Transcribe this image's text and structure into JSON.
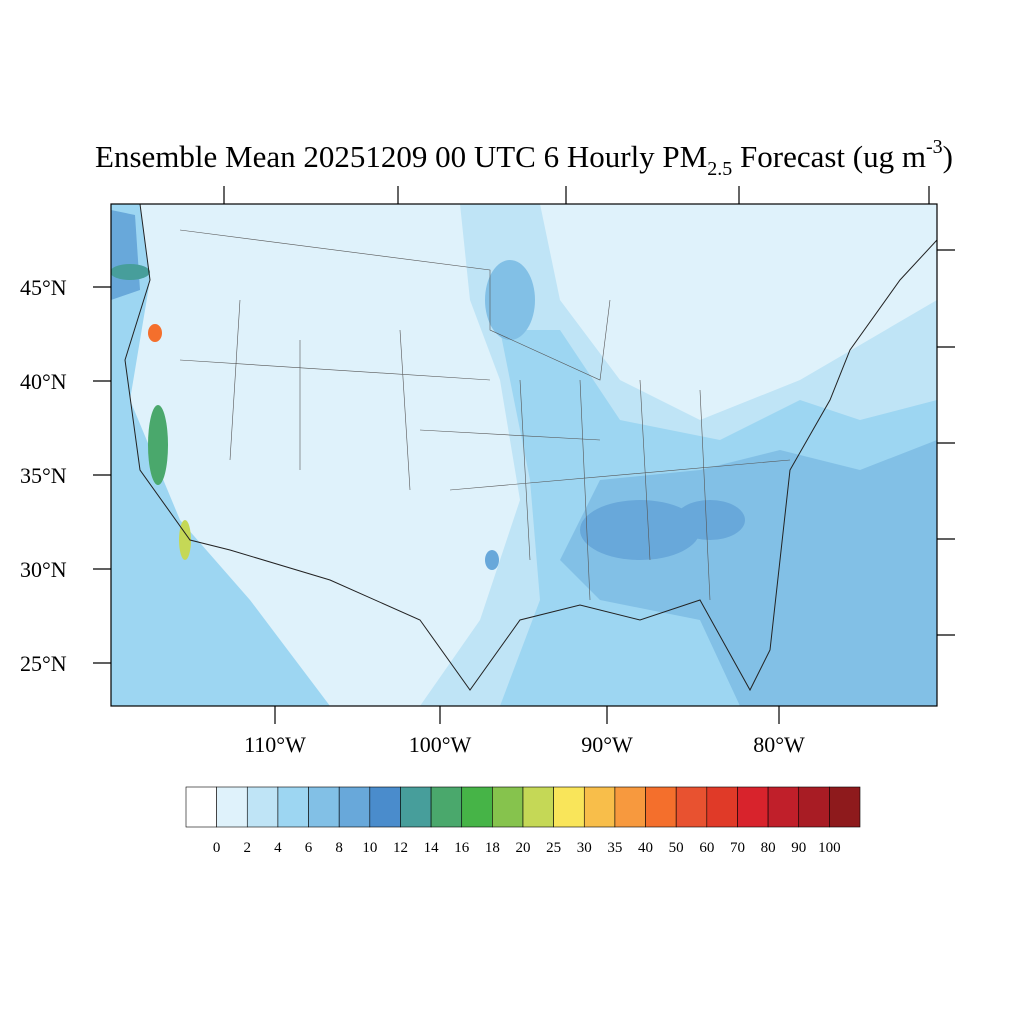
{
  "title": {
    "text": "Ensemble Mean 20251209 00 UTC 6 Hourly PM",
    "subscript": "2.5",
    "text2": " Forecast (ug m",
    "superscript": "-3",
    "text3": ")"
  },
  "map": {
    "lat_labels": [
      "45°N",
      "40°N",
      "35°N",
      "30°N",
      "25°N"
    ],
    "lon_labels": [
      "110°W",
      "100°W",
      "90°W",
      "80°W"
    ]
  },
  "colorbar": {
    "colors": [
      "#ffffff",
      "#dff2fb",
      "#bfe4f6",
      "#9dd6f2",
      "#82c0e6",
      "#68a8da",
      "#4a8ccc",
      "#479e9b",
      "#4aa86c",
      "#46b447",
      "#86c34d",
      "#c5d856",
      "#f9e55a",
      "#f8be4a",
      "#f7993e",
      "#f46f2c",
      "#e85230",
      "#e03a28",
      "#d8232c",
      "#c01f2a",
      "#a81c24",
      "#8e1a1c"
    ],
    "labels": [
      0,
      2,
      4,
      6,
      8,
      10,
      12,
      14,
      16,
      18,
      20,
      25,
      30,
      35,
      40,
      50,
      60,
      70,
      80,
      90,
      100
    ]
  }
}
